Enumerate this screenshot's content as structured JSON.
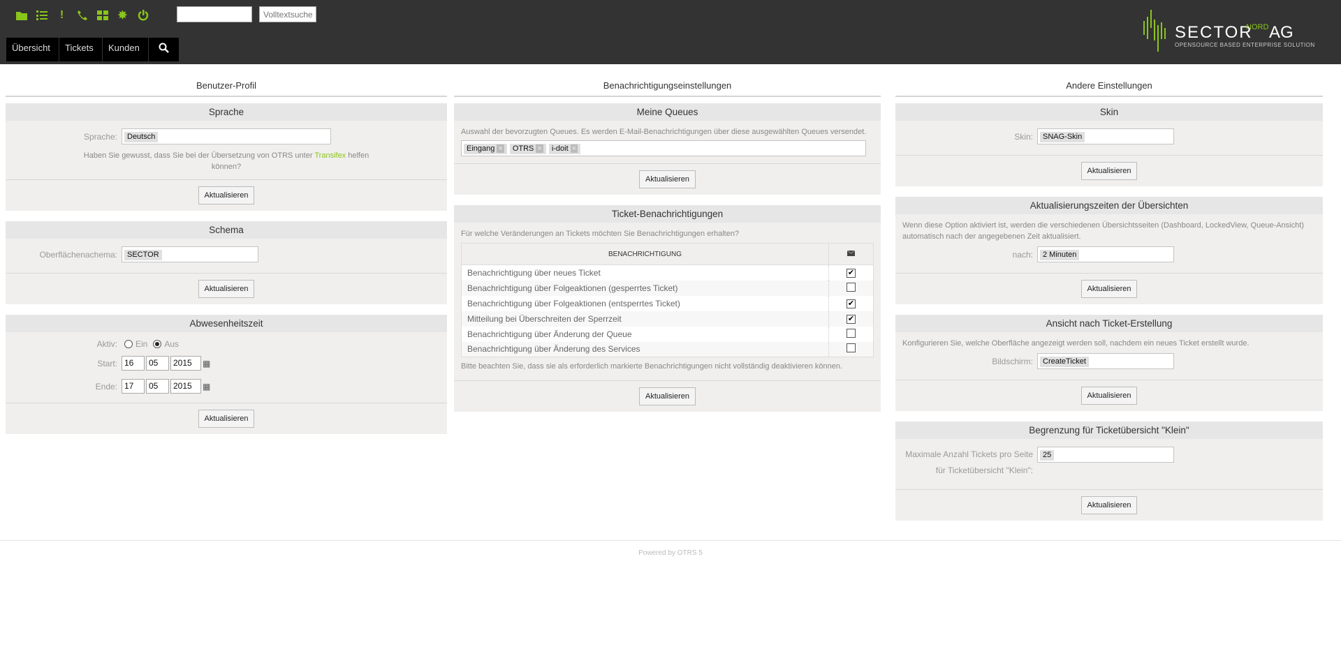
{
  "colors": {
    "accent": "#8ac51b",
    "header_bg": "#333333"
  },
  "toolbar": {
    "icons": [
      "folder-icon",
      "ordered-list-icon",
      "exclamation-icon",
      "phone-icon",
      "dashboard-icon",
      "gear-icon",
      "power-icon"
    ],
    "search_value": "",
    "fulltext_placeholder": "Volltextsuche"
  },
  "nav": {
    "items": [
      "Übersicht",
      "Tickets",
      "Kunden"
    ],
    "search_icon": "search-icon"
  },
  "logo": {
    "main": "SECTOR",
    "super": "NORD",
    "suffix": "AG",
    "tagline": "OpenSource based enterprise solutions"
  },
  "columns": {
    "profile": {
      "title": "Benutzer-Profil",
      "language": {
        "header": "Sprache",
        "label": "Sprache:",
        "value": "Deutsch",
        "hint_pre": "Haben Sie gewusst, dass Sie bei der Übersetzung von OTRS unter ",
        "hint_link": "Transifex",
        "hint_post": " helfen können?",
        "button": "Aktualisieren"
      },
      "theme": {
        "header": "Schema",
        "label": "Oberflächenachema:",
        "value": "SECTOR",
        "button": "Aktualisieren"
      },
      "absence": {
        "header": "Abwesenheitszeit",
        "active_label": "Aktiv:",
        "opt_on": "Ein",
        "opt_off": "Aus",
        "selected": "Aus",
        "start_label": "Start:",
        "start": {
          "day": "16",
          "month": "05",
          "year": "2015"
        },
        "end_label": "Ende:",
        "end": {
          "day": "17",
          "month": "05",
          "year": "2015"
        },
        "button": "Aktualisieren"
      }
    },
    "notifications": {
      "title": "Benachrichtigungseinstellungen",
      "queues": {
        "header": "Meine Queues",
        "desc": "Auswahl der bevorzugten Queues. Es werden E-Mail-Benachrichtigungen über diese ausgewählten Queues versendet.",
        "selected": [
          "Eingang",
          "OTRS",
          "i-doit"
        ],
        "button": "Aktualisieren"
      },
      "ticket": {
        "header": "Ticket-Benachrichtigungen",
        "desc": "Für welche Veränderungen an Tickets möchten Sie Benachrichtigungen erhalten?",
        "col_header": "BENACHRICHTIGUNG",
        "col_icon": "envelope-icon",
        "rows": [
          {
            "label": "Benachrichtigung über neues Ticket",
            "checked": true
          },
          {
            "label": "Benachrichtigung über Folgeaktionen (gesperrtes Ticket)",
            "checked": false
          },
          {
            "label": "Benachrichtigung über Folgeaktionen (entsperrtes Ticket)",
            "checked": true
          },
          {
            "label": "Mitteilung bei Überschreiten der Sperrzeit",
            "checked": true
          },
          {
            "label": "Benachrichtigung über Änderung der Queue",
            "checked": false
          },
          {
            "label": "Benachrichtigung über Änderung des Services",
            "checked": false
          }
        ],
        "note": "Bitte beachten Sie, dass sie als erforderlich markierte Benachrichtigungen nicht vollständig deaktivieren können.",
        "button": "Aktualisieren"
      }
    },
    "other": {
      "title": "Andere Einstellungen",
      "skin": {
        "header": "Skin",
        "label": "Skin:",
        "value": "SNAG-Skin",
        "button": "Aktualisieren"
      },
      "refresh": {
        "header": "Aktualisierungszeiten der Übersichten",
        "desc": "Wenn diese Option aktiviert ist, werden die verschiedenen Übersichtsseiten (Dashboard, LockedView, Queue-Ansicht) automatisch nach der angegebenen Zeit aktualisiert.",
        "label": "nach:",
        "value": "2 Minuten",
        "button": "Aktualisieren"
      },
      "create_view": {
        "header": "Ansicht nach Ticket-Erstellung",
        "desc": "Konfigurieren Sie, welche Oberfläche angezeigt werden soll, nachdem ein neues Ticket erstellt wurde.",
        "label": "Bildschirm:",
        "value": "CreateTicket",
        "button": "Aktualisieren"
      },
      "limit": {
        "header": "Begrenzung für Ticketübersicht \"Klein\"",
        "label": "Maximale Anzahl Tickets pro Seite für Ticketübersicht \"Klein\":",
        "value": "25",
        "button": "Aktualisieren"
      }
    }
  },
  "footer": {
    "text": "Powered by OTRS 5"
  }
}
